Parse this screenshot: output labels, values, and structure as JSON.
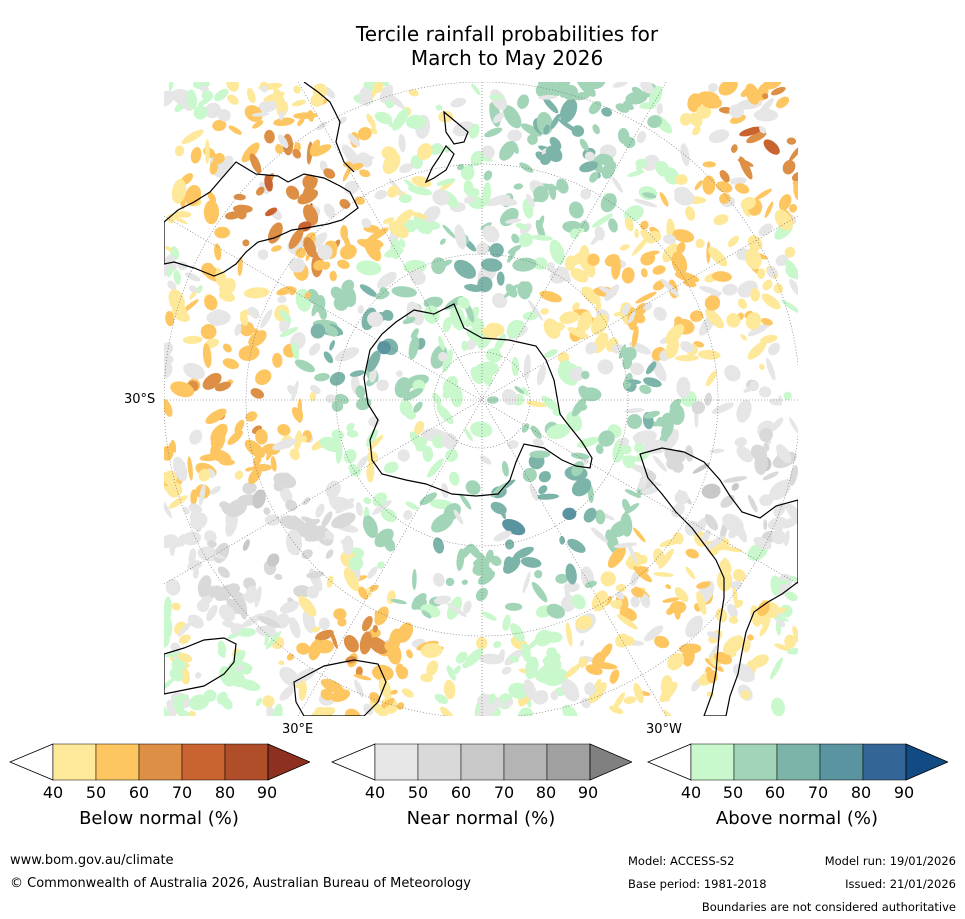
{
  "title": {
    "line1": "Tercile rainfall probabilities for",
    "line2": "March to May 2026"
  },
  "map": {
    "lat_label": "30°S",
    "lon_label_east": "30°E",
    "lon_label_west": "30°W"
  },
  "colorbars": [
    {
      "label": "Below normal (%)",
      "ticks": [
        "40",
        "50",
        "60",
        "70",
        "80",
        "90"
      ],
      "colors": [
        "#ffffff",
        "#fee99a",
        "#fdc661",
        "#dd8f45",
        "#c9632f",
        "#b04e2a",
        "#8e3020"
      ]
    },
    {
      "label": "Near normal (%)",
      "ticks": [
        "40",
        "50",
        "60",
        "70",
        "80",
        "90"
      ],
      "colors": [
        "#ffffff",
        "#e6e6e6",
        "#d9d9d9",
        "#c8c8c8",
        "#b4b4b4",
        "#a0a0a0",
        "#808080"
      ]
    },
    {
      "label": "Above normal (%)",
      "ticks": [
        "40",
        "50",
        "60",
        "70",
        "80",
        "90"
      ],
      "colors": [
        "#ffffff",
        "#c8f8cc",
        "#a2d5b8",
        "#7db4aa",
        "#5a94a0",
        "#336697",
        "#124b84"
      ]
    }
  ],
  "footer": {
    "website": "www.bom.gov.au/climate",
    "copyright": "© Commonwealth of Australia 2026, Australian Bureau of Meteorology",
    "model": "Model: ACCESS-S2",
    "base_period": "Base period: 1981-2018",
    "model_run": "Model run: 19/01/2026",
    "issued": "Issued: 21/01/2026",
    "disclaimer": "Boundaries are not considered authoritative"
  }
}
